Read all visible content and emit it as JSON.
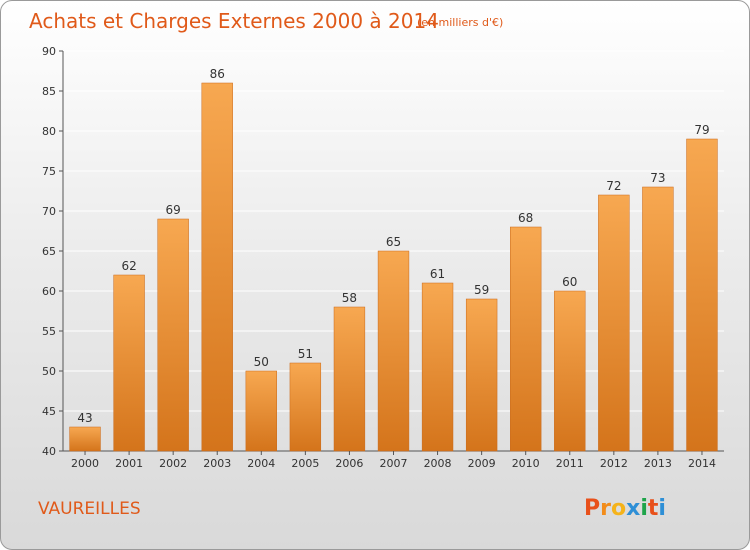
{
  "header": {
    "title": "Achats et Charges Externes 2000 à 2014",
    "unit": "(en milliers d'€)"
  },
  "footer": {
    "commune": "VAUREILLES",
    "logo": {
      "letters": [
        "P",
        "r",
        "o",
        "x",
        "i",
        "t",
        "i"
      ]
    }
  },
  "colors": {
    "bar_top": "#f7a851",
    "bar_bottom": "#d4741b",
    "accent": "#e05a1a",
    "grid": "#ffffff",
    "logo_letters": [
      "#e8501a",
      "#f28c1a",
      "#f5b31a",
      "#2e8fd6",
      "#1ea44a",
      "#e8501a",
      "#2e8fd6"
    ]
  },
  "chart_data": {
    "type": "bar",
    "title": "Achats et Charges Externes 2000 à 2014",
    "subtitle": "(en milliers d'€)",
    "categories": [
      "2000",
      "2001",
      "2002",
      "2003",
      "2004",
      "2005",
      "2006",
      "2007",
      "2008",
      "2009",
      "2010",
      "2011",
      "2012",
      "2013",
      "2014"
    ],
    "values": [
      43,
      62,
      69,
      86,
      50,
      51,
      58,
      65,
      61,
      59,
      68,
      60,
      72,
      73,
      79
    ],
    "xlabel": "",
    "ylabel": "",
    "ylim": [
      40,
      90
    ],
    "yticks": [
      40,
      45,
      50,
      55,
      60,
      65,
      70,
      75,
      80,
      85,
      90
    ],
    "grid": true,
    "legend": "none"
  }
}
